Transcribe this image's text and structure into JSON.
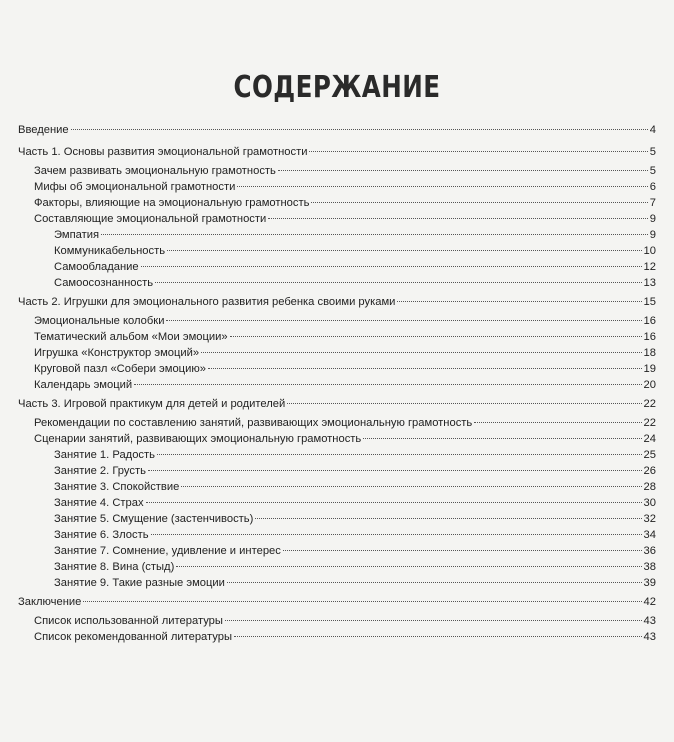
{
  "title": "СОДЕРЖАНИЕ",
  "entries": [
    {
      "level": 0,
      "label": "Введение",
      "page": "4"
    },
    {
      "level": 0,
      "label": "Часть 1. Основы развития эмоциональной грамотности",
      "page": "5"
    },
    {
      "level": 1,
      "label": "Зачем развивать эмоциональную грамотность",
      "page": "5"
    },
    {
      "level": 1,
      "label": "Мифы об эмоциональной грамотности",
      "page": "6"
    },
    {
      "level": 1,
      "label": "Факторы, влияющие на эмоциональную грамотность",
      "page": "7"
    },
    {
      "level": 1,
      "label": "Составляющие эмоциональной грамотности",
      "page": "9"
    },
    {
      "level": 2,
      "label": "Эмпатия",
      "page": "9"
    },
    {
      "level": 2,
      "label": "Коммуникабельность",
      "page": "10"
    },
    {
      "level": 2,
      "label": "Самообладание",
      "page": "12"
    },
    {
      "level": 2,
      "label": "Самоосознанность",
      "page": "13"
    },
    {
      "level": 0,
      "label": "Часть 2. Игрушки для эмоционального развития ребенка своими руками",
      "page": "15"
    },
    {
      "level": 1,
      "label": "Эмоциональные колобки",
      "page": "16"
    },
    {
      "level": 1,
      "label": "Тематический альбом «Мои эмоции»",
      "page": "16"
    },
    {
      "level": 1,
      "label": "Игрушка «Конструктор эмоций»",
      "page": "18"
    },
    {
      "level": 1,
      "label": "Круговой пазл «Собери эмоцию»",
      "page": "19"
    },
    {
      "level": 1,
      "label": "Календарь эмоций",
      "page": "20"
    },
    {
      "level": 0,
      "label": "Часть 3. Игровой практикум для детей и родителей",
      "page": "22"
    },
    {
      "level": 1,
      "label": "Рекомендации по составлению занятий, развивающих эмоциональную грамотность",
      "page": "22"
    },
    {
      "level": 1,
      "label": "Сценарии занятий, развивающих эмоциональную грамотность",
      "page": "24"
    },
    {
      "level": 2,
      "label": "Занятие 1. Радость",
      "page": "25"
    },
    {
      "level": 2,
      "label": "Занятие 2. Грусть",
      "page": "26"
    },
    {
      "level": 2,
      "label": "Занятие 3. Спокойствие",
      "page": "28"
    },
    {
      "level": 2,
      "label": "Занятие 4. Страх",
      "page": "30"
    },
    {
      "level": 2,
      "label": "Занятие 5. Смущение (застенчивость)",
      "page": "32"
    },
    {
      "level": 2,
      "label": "Занятие 6. Злость",
      "page": "34"
    },
    {
      "level": 2,
      "label": "Занятие 7. Сомнение, удивление и интерес",
      "page": "36"
    },
    {
      "level": 2,
      "label": "Занятие 8. Вина (стыд)",
      "page": "38"
    },
    {
      "level": 2,
      "label": "Занятие 9. Такие разные эмоции",
      "page": "39"
    },
    {
      "level": 0,
      "label": "Заключение",
      "page": "42"
    },
    {
      "level": 1,
      "label": "Список использованной литературы",
      "page": "43"
    },
    {
      "level": 1,
      "label": "Список рекомендованной литературы",
      "page": "43"
    }
  ]
}
